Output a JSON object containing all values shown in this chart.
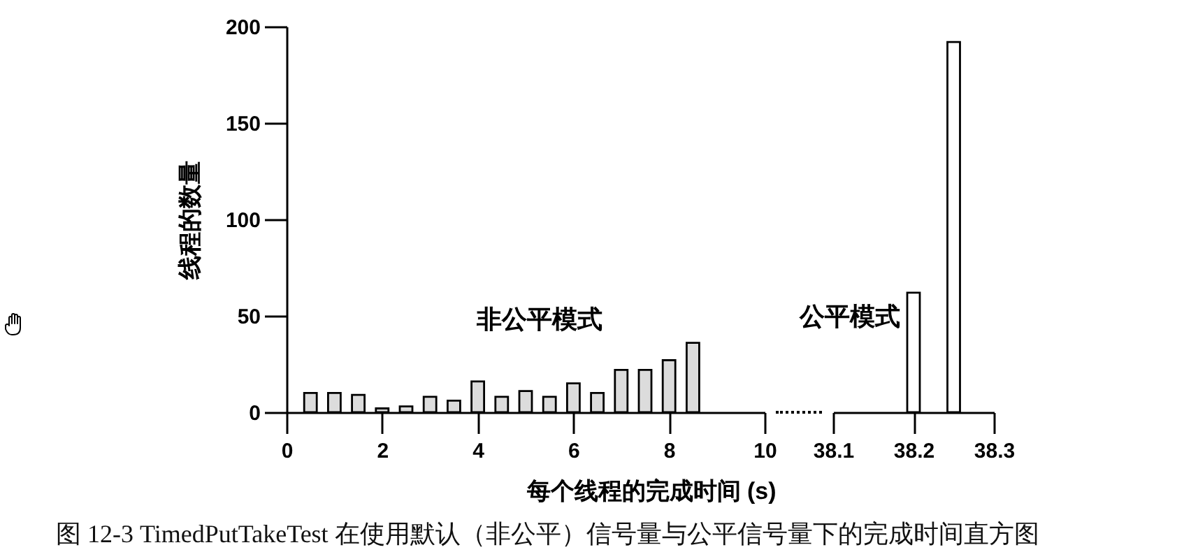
{
  "chart_data": [
    {
      "type": "bar",
      "xlabel": "每个线程的完成时间 (s)",
      "ylabel": "线程的数量",
      "xlim": [
        0,
        10
      ],
      "xticks": [
        0,
        2,
        4,
        6,
        8,
        10
      ],
      "ylim": [
        0,
        200
      ],
      "yticks": [
        0,
        50,
        100,
        150,
        200
      ],
      "series": [
        {
          "name": "非公平模式",
          "color": "#dcdcdc",
          "x": [
            0.5,
            1,
            1.5,
            2,
            2.5,
            3,
            3.5,
            4,
            4.5,
            5,
            5.5,
            6,
            6.5,
            7,
            7.5,
            8,
            8.5
          ],
          "values": [
            10,
            10,
            9,
            2,
            3,
            8,
            6,
            16,
            8,
            11,
            8,
            15,
            10,
            22,
            22,
            27,
            36
          ]
        }
      ],
      "annotations": [
        "图 12-3 TimedPutTakeTest 在使用默认（非公平）信号量与公平信号量下的完成时间直方图"
      ]
    },
    {
      "type": "bar",
      "xlim": [
        38.1,
        38.3
      ],
      "xticks": [
        38.1,
        38.2,
        38.3
      ],
      "ylim": [
        0,
        200
      ],
      "tick_labels": "x",
      "series": [
        {
          "name": "公平模式",
          "color": "#ffffff",
          "x": [
            38.2,
            38.25
          ],
          "values": [
            62,
            192
          ]
        }
      ]
    }
  ]
}
